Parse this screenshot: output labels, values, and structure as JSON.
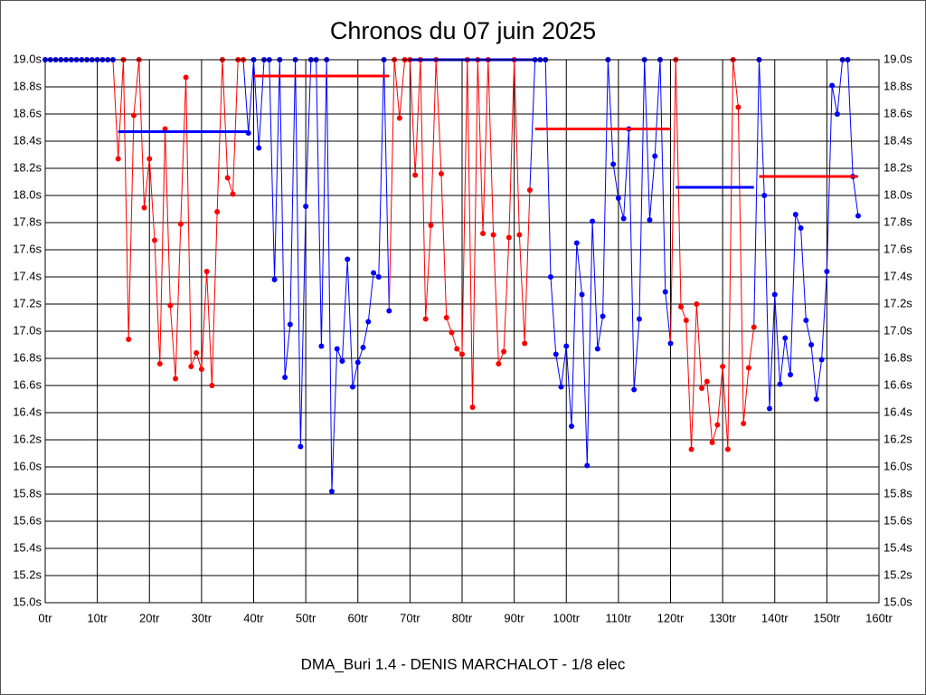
{
  "chart_data": {
    "type": "line",
    "title": "Chronos du 07 juin 2025",
    "subtitle": "DMA_Buri 1.4 - DENIS MARCHALOT - 1/8 elec",
    "xlim": [
      0,
      160
    ],
    "ylim": [
      15.0,
      19.0
    ],
    "xticks": [
      {
        "value": 0,
        "label": "0tr"
      },
      {
        "value": 10,
        "label": "10tr"
      },
      {
        "value": 20,
        "label": "20tr"
      },
      {
        "value": 30,
        "label": "30tr"
      },
      {
        "value": 40,
        "label": "40tr"
      },
      {
        "value": 50,
        "label": "50tr"
      },
      {
        "value": 60,
        "label": "60tr"
      },
      {
        "value": 70,
        "label": "70tr"
      },
      {
        "value": 80,
        "label": "80tr"
      },
      {
        "value": 90,
        "label": "90tr"
      },
      {
        "value": 100,
        "label": "100tr"
      },
      {
        "value": 110,
        "label": "110tr"
      },
      {
        "value": 120,
        "label": "120tr"
      },
      {
        "value": 130,
        "label": "130tr"
      },
      {
        "value": 140,
        "label": "140tr"
      },
      {
        "value": 150,
        "label": "150tr"
      },
      {
        "value": 160,
        "label": "160tr"
      }
    ],
    "yticks": [
      {
        "value": 15.0,
        "label": "15.0s"
      },
      {
        "value": 15.2,
        "label": "15.2s"
      },
      {
        "value": 15.4,
        "label": "15.4s"
      },
      {
        "value": 15.6,
        "label": "15.6s"
      },
      {
        "value": 15.8,
        "label": "15.8s"
      },
      {
        "value": 16.0,
        "label": "16.0s"
      },
      {
        "value": 16.2,
        "label": "16.2s"
      },
      {
        "value": 16.4,
        "label": "16.4s"
      },
      {
        "value": 16.6,
        "label": "16.6s"
      },
      {
        "value": 16.8,
        "label": "16.8s"
      },
      {
        "value": 17.0,
        "label": "17.0s"
      },
      {
        "value": 17.2,
        "label": "17.2s"
      },
      {
        "value": 17.4,
        "label": "17.4s"
      },
      {
        "value": 17.6,
        "label": "17.6s"
      },
      {
        "value": 17.8,
        "label": "17.8s"
      },
      {
        "value": 18.0,
        "label": "18.0s"
      },
      {
        "value": 18.2,
        "label": "18.2s"
      },
      {
        "value": 18.4,
        "label": "18.4s"
      },
      {
        "value": 18.6,
        "label": "18.6s"
      },
      {
        "value": 18.8,
        "label": "18.8s"
      },
      {
        "value": 19.0,
        "label": "19.0s"
      }
    ],
    "grid": true,
    "series": [
      {
        "color": "#0000ff",
        "x": [
          0,
          1,
          2,
          3,
          4,
          5,
          6,
          7,
          8,
          9,
          10,
          11,
          12,
          13
        ],
        "values": [
          19.0,
          19.0,
          19.0,
          19.0,
          19.0,
          19.0,
          19.0,
          19.0,
          19.0,
          19.0,
          19.0,
          19.0,
          19.0,
          19.0
        ]
      },
      {
        "color": "#ff0000",
        "x": [
          14,
          15,
          16,
          17,
          18,
          19,
          20,
          21,
          22,
          23,
          24,
          25,
          26,
          27,
          28,
          29,
          30,
          31,
          32,
          33,
          34,
          35,
          36,
          37,
          38
        ],
        "values": [
          18.27,
          19.0,
          16.94,
          18.59,
          19.0,
          17.91,
          18.27,
          17.67,
          16.76,
          18.49,
          17.19,
          16.65,
          17.79,
          18.87,
          16.74,
          16.84,
          16.72,
          17.44,
          16.6,
          17.88,
          19.0,
          18.13,
          18.01,
          19.0,
          19.0
        ]
      },
      {
        "color": "#0000ff",
        "x": [
          39,
          40,
          41,
          42,
          43,
          44,
          45,
          46,
          47,
          48,
          49,
          50,
          51,
          52,
          53,
          54,
          55,
          56,
          57,
          58,
          59,
          60,
          61,
          62,
          63,
          64,
          65,
          66
        ],
        "values": [
          18.46,
          19.0,
          18.35,
          19.0,
          19.0,
          17.38,
          19.0,
          16.66,
          17.05,
          19.0,
          16.15,
          17.92,
          19.0,
          19.0,
          16.89,
          19.0,
          15.82,
          16.87,
          16.78,
          17.53,
          16.59,
          16.77,
          16.88,
          17.07,
          17.43,
          17.4,
          19.0,
          17.15
        ]
      },
      {
        "color": "#ff0000",
        "x": [
          67,
          68,
          69,
          70,
          71,
          72,
          73,
          74,
          75,
          76,
          77,
          78,
          79,
          80,
          81,
          82,
          83,
          84,
          85,
          86,
          87,
          88,
          89,
          90,
          91,
          92,
          93
        ],
        "values": [
          19.0,
          18.57,
          19.0,
          19.0,
          18.15,
          19.0,
          17.09,
          17.78,
          19.0,
          18.16,
          17.1,
          16.99,
          16.87,
          16.83,
          19.0,
          16.44,
          19.0,
          17.72,
          19.0,
          17.71,
          16.76,
          16.85,
          17.69,
          19.0,
          17.71,
          16.91,
          18.04
        ]
      },
      {
        "color": "#0000ff",
        "x": [
          94,
          95,
          96,
          97,
          98,
          99,
          100,
          101,
          102,
          103,
          104,
          105,
          106,
          107,
          108,
          109,
          110,
          111,
          112,
          113,
          114,
          115,
          116,
          117,
          118,
          119,
          120
        ],
        "values": [
          19.0,
          19.0,
          19.0,
          17.4,
          16.83,
          16.59,
          16.89,
          16.3,
          17.65,
          17.27,
          16.01,
          17.81,
          16.87,
          17.11,
          19.0,
          18.23,
          17.98,
          17.83,
          18.49,
          16.57,
          17.09,
          19.0,
          17.82,
          18.29,
          19.0,
          17.29,
          16.91
        ]
      },
      {
        "color": "#ff0000",
        "x": [
          121,
          122,
          123,
          124,
          125,
          126,
          127,
          128,
          129,
          130,
          131,
          132,
          133,
          134,
          135,
          136
        ],
        "values": [
          19.0,
          17.18,
          17.08,
          16.13,
          17.2,
          16.58,
          16.63,
          16.18,
          16.31,
          16.74,
          16.13,
          19.0,
          18.65,
          16.32,
          16.73,
          17.03
        ]
      },
      {
        "color": "#0000ff",
        "x": [
          137,
          138,
          139,
          140,
          141,
          142,
          143,
          144,
          145,
          146,
          147,
          148,
          149,
          150,
          151,
          152,
          153,
          154,
          155,
          156
        ],
        "values": [
          19.0,
          18.0,
          16.43,
          17.27,
          16.61,
          16.95,
          16.68,
          17.86,
          17.76,
          17.08,
          16.9,
          16.5,
          16.79,
          17.44,
          18.81,
          18.6,
          19.0,
          19.0,
          18.14,
          17.85
        ]
      }
    ],
    "mean_lines": [
      {
        "color": "#0000ff",
        "x": [
          14,
          39
        ],
        "value": 18.47
      },
      {
        "color": "#ff0000",
        "x": [
          40,
          66
        ],
        "value": 18.88
      },
      {
        "color": "#0000ff",
        "x": [
          70,
          94
        ],
        "value": 19.0
      },
      {
        "color": "#ff0000",
        "x": [
          94,
          120
        ],
        "value": 18.49
      },
      {
        "color": "#0000ff",
        "x": [
          121,
          136
        ],
        "value": 18.06
      },
      {
        "color": "#ff0000",
        "x": [
          137,
          156
        ],
        "value": 18.14
      }
    ]
  }
}
